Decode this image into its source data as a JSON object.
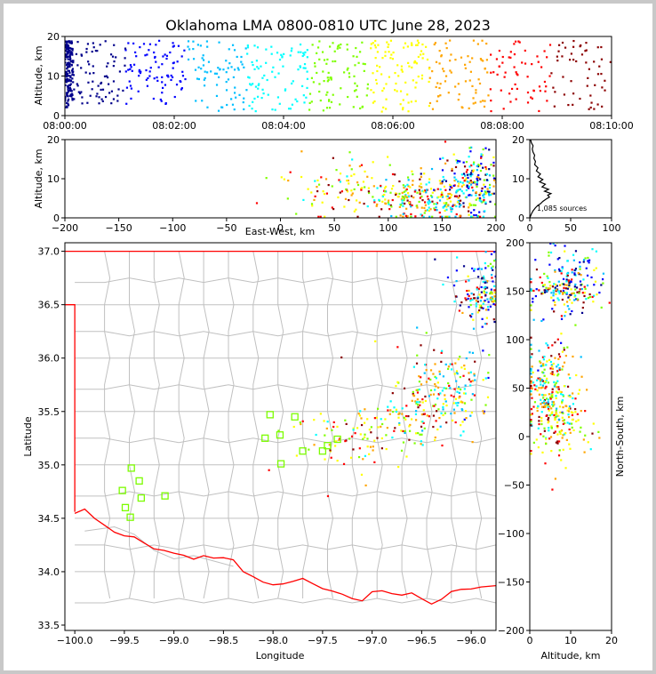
{
  "title": "Oklahoma LMA 0800-0810 UTC June 28, 2023",
  "chart_data": [
    {
      "panel": "time-height",
      "type": "scatter",
      "ylabel": "Altitude, km",
      "xlim": [
        "08:00:00",
        "08:10:00"
      ],
      "ylim": [
        0,
        20
      ],
      "xticks": [
        "08:00:00",
        "08:02:00",
        "08:04:00",
        "08:06:00",
        "08:08:00",
        "08:10:00"
      ],
      "yticks": [
        "0",
        "10",
        "20"
      ],
      "color_by": "time",
      "colormap": [
        "#00008b",
        "#0000ff",
        "#00bfff",
        "#00ffff",
        "#7fff00",
        "#ffff00",
        "#ffa500",
        "#ff0000",
        "#8b0000"
      ],
      "series": [
        {
          "x_start_min": 0.0,
          "x_end_min": 0.15,
          "y_range": [
            2,
            19
          ],
          "approx_points": 160
        },
        {
          "x_start_min": 0.15,
          "x_end_min": 1.0,
          "y_range": [
            3,
            19
          ],
          "approx_points": 70
        },
        {
          "x_start_min": 1.0,
          "x_end_min": 2.0,
          "y_range": [
            2,
            19
          ],
          "approx_points": 80
        },
        {
          "x_start_min": 2.0,
          "x_end_min": 3.2,
          "y_range": [
            1,
            19
          ],
          "approx_points": 80
        },
        {
          "x_start_min": 3.2,
          "x_end_min": 4.4,
          "y_range": [
            1,
            18
          ],
          "approx_points": 90
        },
        {
          "x_start_min": 4.4,
          "x_end_min": 5.8,
          "y_range": [
            1,
            19
          ],
          "approx_points": 110
        },
        {
          "x_start_min": 5.8,
          "x_end_min": 7.0,
          "y_range": [
            1,
            19
          ],
          "approx_points": 100
        },
        {
          "x_start_min": 7.0,
          "x_end_min": 8.2,
          "y_range": [
            1,
            19
          ],
          "approx_points": 70
        },
        {
          "x_start_min": 8.2,
          "x_end_min": 10.0,
          "y_range": [
            1,
            19
          ],
          "approx_points": 90
        }
      ]
    },
    {
      "panel": "east-west-altitude",
      "type": "scatter",
      "xlabel": "East-West, km",
      "ylabel": "Altitude, km",
      "xlim": [
        -200,
        200
      ],
      "ylim": [
        0,
        20
      ],
      "xticks": [
        "−200",
        "−150",
        "−100",
        "−50",
        "0",
        "50",
        "100",
        "150",
        "200"
      ],
      "yticks": [
        "0",
        "10",
        "20"
      ]
    },
    {
      "panel": "altitude-histogram",
      "type": "line",
      "xlim": [
        0,
        100
      ],
      "ylim": [
        0,
        20
      ],
      "xticks": [
        "0",
        "50",
        "100"
      ],
      "yticks": [
        "0",
        "10",
        "20"
      ],
      "annotation": "1,085 sources",
      "profile": [
        [
          0,
          0
        ],
        [
          2,
          1
        ],
        [
          4,
          1.8
        ],
        [
          7,
          2.6
        ],
        [
          10,
          3.2
        ],
        [
          13,
          3.6
        ],
        [
          16,
          4.2
        ],
        [
          20,
          4.8
        ],
        [
          24,
          5.3
        ],
        [
          22,
          5.8
        ],
        [
          26,
          6.2
        ],
        [
          18,
          6.8
        ],
        [
          23,
          7.3
        ],
        [
          15,
          7.9
        ],
        [
          19,
          8.6
        ],
        [
          12,
          9.2
        ],
        [
          16,
          9.8
        ],
        [
          10,
          10.5
        ],
        [
          13,
          11.2
        ],
        [
          8,
          12.0
        ],
        [
          10,
          12.8
        ],
        [
          6,
          13.6
        ],
        [
          7,
          14.4
        ],
        [
          5,
          15.2
        ],
        [
          6,
          16.0
        ],
        [
          4,
          16.8
        ],
        [
          3,
          17.6
        ],
        [
          4,
          18.4
        ],
        [
          2,
          19.2
        ],
        [
          1,
          20
        ]
      ]
    },
    {
      "panel": "plan-view-map",
      "type": "scatter",
      "xlabel": "Longitude",
      "ylabel": "Latitude",
      "xlim": [
        -100.1,
        -95.75
      ],
      "ylim": [
        33.45,
        37.08
      ],
      "xticks": [
        "−100.0",
        "−99.5",
        "−99.0",
        "−98.5",
        "−98.0",
        "−97.5",
        "−97.0",
        "−96.5",
        "−96.0"
      ],
      "yticks": [
        "33.5",
        "34.0",
        "34.5",
        "35.0",
        "35.5",
        "36.0",
        "36.5",
        "37.0"
      ],
      "stations": [
        [
          -99.43,
          34.97
        ],
        [
          -99.35,
          34.85
        ],
        [
          -99.52,
          34.76
        ],
        [
          -99.33,
          34.69
        ],
        [
          -99.09,
          34.71
        ],
        [
          -99.49,
          34.6
        ],
        [
          -99.44,
          34.51
        ],
        [
          -98.03,
          35.47
        ],
        [
          -97.78,
          35.45
        ],
        [
          -98.08,
          35.25
        ],
        [
          -97.93,
          35.28
        ],
        [
          -97.7,
          35.13
        ],
        [
          -97.92,
          35.01
        ],
        [
          -97.5,
          35.13
        ],
        [
          -97.35,
          35.24
        ],
        [
          -97.45,
          35.18
        ]
      ],
      "station_color": "#7cfc00",
      "boundary_color": "#ff0000",
      "county_color": "#c0c0c0"
    },
    {
      "panel": "altitude-north-south",
      "type": "scatter",
      "xlabel": "Altitude, km",
      "ylabel": "North-South, km",
      "xlim": [
        0,
        20
      ],
      "ylim": [
        -200,
        200
      ],
      "xticks": [
        "0",
        "10",
        "20"
      ],
      "yticks": [
        "−200",
        "−150",
        "−100",
        "−50",
        "0",
        "50",
        "100",
        "150",
        "200"
      ]
    }
  ]
}
